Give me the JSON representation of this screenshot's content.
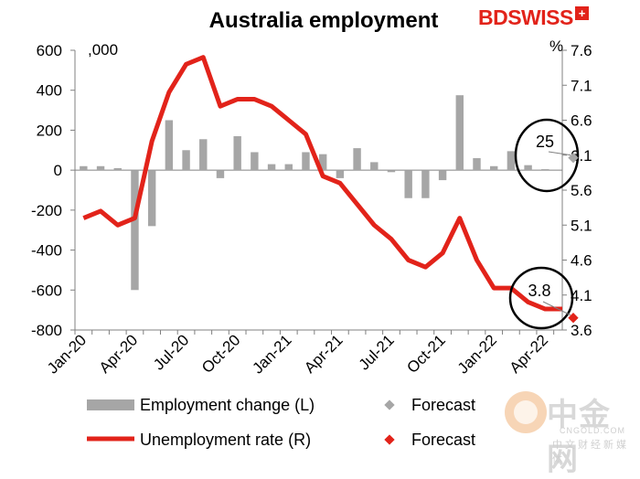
{
  "chart_data": {
    "type": "bar+line",
    "title": "Australia employment",
    "left_unit": ",000",
    "right_unit": "%",
    "left_axis": {
      "ylim": [
        -800,
        600
      ],
      "ticks": [
        -800,
        -600,
        -400,
        -200,
        0,
        200,
        400,
        600
      ]
    },
    "right_axis": {
      "ylim": [
        3.6,
        7.6
      ],
      "ticks": [
        3.6,
        4.1,
        4.6,
        5.1,
        5.6,
        6.1,
        6.6,
        7.1,
        7.6
      ]
    },
    "x_ticks": [
      "Jan-20",
      "Apr-20",
      "Jul-20",
      "Oct-20",
      "Jan-21",
      "Apr-21",
      "Jul-21",
      "Oct-21",
      "Jan-22",
      "Apr-22"
    ],
    "months": [
      "Jan-20",
      "Feb-20",
      "Mar-20",
      "Apr-20",
      "May-20",
      "Jun-20",
      "Jul-20",
      "Aug-20",
      "Sep-20",
      "Oct-20",
      "Nov-20",
      "Dec-20",
      "Jan-21",
      "Feb-21",
      "Mar-21",
      "Apr-21",
      "May-21",
      "Jun-21",
      "Jul-21",
      "Aug-21",
      "Sep-21",
      "Oct-21",
      "Nov-21",
      "Dec-21",
      "Jan-22",
      "Feb-22",
      "Mar-22",
      "Apr-22",
      "May-22"
    ],
    "series": [
      {
        "name": "Employment change (L)",
        "kind": "bar",
        "axis": "left",
        "color": "#a6a6a6",
        "values": [
          20,
          20,
          10,
          -600,
          -280,
          250,
          100,
          155,
          -40,
          170,
          90,
          30,
          30,
          90,
          80,
          -40,
          110,
          40,
          -10,
          -140,
          -140,
          -50,
          375,
          60,
          20,
          95,
          25,
          5,
          null
        ]
      },
      {
        "name": "Unemployment rate (R)",
        "kind": "line",
        "axis": "right",
        "color": "#e2231a",
        "values": [
          5.2,
          5.3,
          5.1,
          5.2,
          6.3,
          7.0,
          7.4,
          7.5,
          6.8,
          6.9,
          6.9,
          6.8,
          6.6,
          6.4,
          5.8,
          5.7,
          5.4,
          5.1,
          4.9,
          4.6,
          4.5,
          4.7,
          5.2,
          4.6,
          4.2,
          4.2,
          4.0,
          3.9,
          3.9
        ]
      }
    ],
    "forecasts": [
      {
        "name": "Forecast",
        "series": "Employment change (L)",
        "month": "May-22",
        "value": 25,
        "label": "25",
        "color": "#a6a6a6"
      },
      {
        "name": "Forecast",
        "series": "Unemployment rate (R)",
        "month": "May-22",
        "value": 3.8,
        "label": "3.8",
        "color": "#e2231a"
      }
    ],
    "legend_position": "bottom",
    "grid": false
  },
  "brand": {
    "text": "BDSWISS",
    "mark": "+"
  },
  "watermark": {
    "cn": "中金网",
    "url": "CNGOLD.COM",
    "cn2": "中文财经新媒体"
  }
}
